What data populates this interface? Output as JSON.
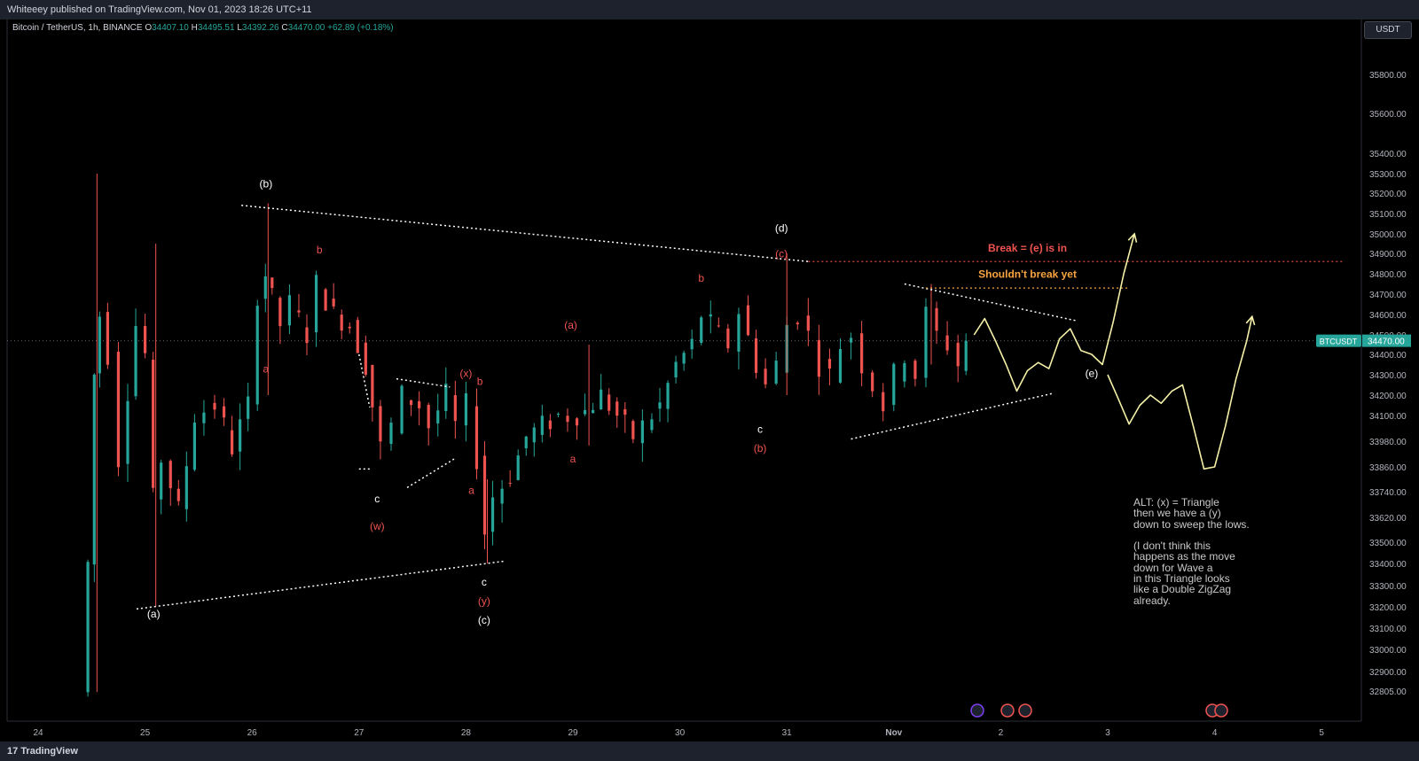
{
  "header": {
    "published": "Whiteeey published on TradingView.com, Nov 01, 2023 18:26 UTC+11"
  },
  "legend": {
    "symbol": "Bitcoin / TetherUS, 1h, BINANCE",
    "o_label": "O",
    "o": "34407.10",
    "h_label": "H",
    "h": "34495.51",
    "l_label": "L",
    "l": "34392.26",
    "c_label": "C",
    "c": "34470.00",
    "change": "+62.89 (+0.18%)"
  },
  "currency_button": "USDT",
  "footer": {
    "brand": "TradingView"
  },
  "colors": {
    "up": "#26a69a",
    "down": "#ef5350",
    "white_label": "#ffffff",
    "red_label": "#ef5350",
    "break_line": "#ef5350",
    "orange_line": "#f7a440",
    "projection": "#f5f0a8"
  },
  "chart_data": {
    "type": "candlestick",
    "symbol": "BTCUSDT",
    "last_price": 34470.0,
    "last_price_label": "34470.00",
    "symbol_badge": "BTCUSDT",
    "x_ticks": [
      {
        "label": "24",
        "day": 24
      },
      {
        "label": "25",
        "day": 25
      },
      {
        "label": "26",
        "day": 26
      },
      {
        "label": "27",
        "day": 27
      },
      {
        "label": "28",
        "day": 28
      },
      {
        "label": "29",
        "day": 29
      },
      {
        "label": "30",
        "day": 30
      },
      {
        "label": "31",
        "day": 31
      },
      {
        "label": "Nov",
        "day": 32
      },
      {
        "label": "2",
        "day": 33
      },
      {
        "label": "3",
        "day": 34
      },
      {
        "label": "4",
        "day": 35
      },
      {
        "label": "5",
        "day": 36
      }
    ],
    "y_ticks": [
      "35800.00",
      "35600.00",
      "35400.00",
      "35300.00",
      "35200.00",
      "35100.00",
      "35000.00",
      "34900.00",
      "34800.00",
      "34700.00",
      "34600.00",
      "34500.00",
      "34400.00",
      "34300.00",
      "34200.00",
      "34100.00",
      "33980.00",
      "33860.00",
      "33740.00",
      "33620.00",
      "33500.00",
      "33400.00",
      "33300.00",
      "33200.00",
      "33100.00",
      "33000.00",
      "32900.00",
      "32805.00"
    ],
    "price_path": [
      [
        24.43,
        32800
      ],
      [
        24.5,
        33400
      ],
      [
        24.55,
        34300
      ],
      [
        24.6,
        34600
      ],
      [
        24.7,
        34400
      ],
      [
        24.8,
        33900
      ],
      [
        24.95,
        34550
      ],
      [
        25.05,
        34400
      ],
      [
        25.1,
        33700
      ],
      [
        25.2,
        33900
      ],
      [
        25.35,
        33650
      ],
      [
        25.5,
        34100
      ],
      [
        25.7,
        34150
      ],
      [
        25.85,
        33950
      ],
      [
        26.0,
        34150
      ],
      [
        26.1,
        34700
      ],
      [
        26.15,
        34800
      ],
      [
        26.3,
        34550
      ],
      [
        26.4,
        34650
      ],
      [
        26.55,
        34500
      ],
      [
        26.65,
        34750
      ],
      [
        26.8,
        34600
      ],
      [
        26.95,
        34550
      ],
      [
        27.1,
        34350
      ],
      [
        27.15,
        34150
      ],
      [
        27.25,
        33950
      ],
      [
        27.35,
        34050
      ],
      [
        27.45,
        34200
      ],
      [
        27.6,
        34150
      ],
      [
        27.7,
        34050
      ],
      [
        27.85,
        34200
      ],
      [
        27.95,
        34050
      ],
      [
        28.05,
        34150
      ],
      [
        28.15,
        33900
      ],
      [
        28.2,
        33550
      ],
      [
        28.3,
        33720
      ],
      [
        28.45,
        33820
      ],
      [
        28.6,
        34000
      ],
      [
        28.75,
        34050
      ],
      [
        28.9,
        34100
      ],
      [
        29.0,
        34100
      ],
      [
        29.15,
        34120
      ],
      [
        29.3,
        34200
      ],
      [
        29.45,
        34100
      ],
      [
        29.6,
        34000
      ],
      [
        29.7,
        34050
      ],
      [
        29.85,
        34150
      ],
      [
        30.0,
        34350
      ],
      [
        30.15,
        34450
      ],
      [
        30.25,
        34600
      ],
      [
        30.4,
        34500
      ],
      [
        30.5,
        34450
      ],
      [
        30.6,
        34620
      ],
      [
        30.75,
        34350
      ],
      [
        30.85,
        34250
      ],
      [
        30.95,
        34350
      ],
      [
        31.05,
        34550
      ],
      [
        31.15,
        34600
      ],
      [
        31.25,
        34500
      ],
      [
        31.35,
        34350
      ],
      [
        31.45,
        34300
      ],
      [
        31.55,
        34450
      ],
      [
        31.65,
        34500
      ],
      [
        31.75,
        34350
      ],
      [
        31.85,
        34250
      ],
      [
        31.95,
        34150
      ],
      [
        32.05,
        34300
      ],
      [
        32.15,
        34400
      ],
      [
        32.25,
        34300
      ],
      [
        32.35,
        34600
      ],
      [
        32.45,
        34500
      ],
      [
        32.55,
        34450
      ],
      [
        32.65,
        34350
      ],
      [
        32.7,
        34470
      ]
    ],
    "price_outliers": [
      {
        "day": 24.55,
        "high": 35300,
        "low": 32800
      },
      {
        "day": 25.1,
        "high": 34950,
        "low": 33200
      },
      {
        "day": 26.15,
        "high": 35150,
        "low": 34200
      },
      {
        "day": 28.2,
        "high": 33800,
        "low": 33400
      },
      {
        "day": 29.15,
        "high": 34450,
        "low": 33960
      },
      {
        "day": 31.0,
        "high": 34900,
        "low": 34200
      },
      {
        "day": 32.35,
        "high": 34750,
        "low": 34350
      }
    ],
    "trendlines": [
      {
        "name": "upper-triangle-line",
        "from": [
          25.9,
          35140
        ],
        "to": [
          31.2,
          34860
        ]
      },
      {
        "name": "lower-triangle-line",
        "from": [
          24.92,
          33190
        ],
        "to": [
          28.35,
          33410
        ]
      },
      {
        "name": "inner-upper-line",
        "from": [
          32.1,
          34750
        ],
        "to": [
          33.7,
          34570
        ]
      },
      {
        "name": "inner-lower-line",
        "from": [
          31.6,
          33990
        ],
        "to": [
          33.5,
          34210
        ]
      },
      {
        "name": "small-triangle-top",
        "from": [
          27.35,
          34280
        ],
        "to": [
          27.85,
          34240
        ]
      },
      {
        "name": "small-triangle-bottom",
        "from": [
          27.45,
          33760
        ],
        "to": [
          27.9,
          33900
        ]
      },
      {
        "name": "small-wedge-left",
        "from": [
          27.0,
          34400
        ],
        "to": [
          27.1,
          34140
        ]
      },
      {
        "name": "small-wedge-vert",
        "from": [
          27.0,
          33850
        ],
        "to": [
          27.1,
          33850
        ]
      }
    ],
    "horizontal_lines": [
      {
        "name": "break-line",
        "label": "Break = (e) is in",
        "price": 34860,
        "from_day": 31.2,
        "to_day": 36.2
      },
      {
        "name": "shouldnt-break-line",
        "label": "Shouldn't break yet",
        "price": 34730,
        "from_day": 32.3,
        "to_day": 34.2
      }
    ],
    "projection_main": [
      [
        32.75,
        34500
      ],
      [
        32.85,
        34580
      ],
      [
        32.95,
        34470
      ],
      [
        33.05,
        34350
      ],
      [
        33.15,
        34220
      ],
      [
        33.25,
        34320
      ],
      [
        33.35,
        34360
      ],
      [
        33.45,
        34330
      ],
      [
        33.55,
        34480
      ],
      [
        33.65,
        34530
      ],
      [
        33.75,
        34420
      ],
      [
        33.85,
        34400
      ],
      [
        33.95,
        34350
      ],
      [
        34.05,
        34560
      ],
      [
        34.15,
        34800
      ],
      [
        34.25,
        35000
      ]
    ],
    "projection_alt": [
      [
        34.0,
        34300
      ],
      [
        34.1,
        34180
      ],
      [
        34.2,
        34060
      ],
      [
        34.3,
        34150
      ],
      [
        34.4,
        34200
      ],
      [
        34.5,
        34160
      ],
      [
        34.6,
        34220
      ],
      [
        34.7,
        34250
      ],
      [
        34.8,
        34050
      ],
      [
        34.9,
        33850
      ],
      [
        35.0,
        33860
      ],
      [
        35.1,
        34050
      ],
      [
        35.2,
        34280
      ],
      [
        35.3,
        34470
      ],
      [
        35.35,
        34590
      ]
    ],
    "wave_labels": [
      {
        "text": "(b)",
        "day": 26.13,
        "price": 35230,
        "color": "white"
      },
      {
        "text": "(a)",
        "day": 25.08,
        "price": 33150,
        "color": "white"
      },
      {
        "text": "(c)",
        "day": 28.17,
        "price": 33120,
        "color": "white"
      },
      {
        "text": "(d)",
        "day": 30.95,
        "price": 35010,
        "color": "white"
      },
      {
        "text": "(e)",
        "day": 33.85,
        "price": 34290,
        "color": "white"
      },
      {
        "text": "b",
        "day": 26.63,
        "price": 34900,
        "color": "red"
      },
      {
        "text": "a",
        "day": 26.13,
        "price": 34310,
        "color": "red"
      },
      {
        "text": "c",
        "day": 27.17,
        "price": 33690,
        "color": "white"
      },
      {
        "text": "(w)",
        "day": 27.17,
        "price": 33560,
        "color": "red"
      },
      {
        "text": "(x)",
        "day": 28.0,
        "price": 34290,
        "color": "red"
      },
      {
        "text": "b",
        "day": 28.13,
        "price": 34250,
        "color": "red"
      },
      {
        "text": "a",
        "day": 28.05,
        "price": 33730,
        "color": "red"
      },
      {
        "text": "c",
        "day": 28.17,
        "price": 33300,
        "color": "white"
      },
      {
        "text": "(y)",
        "day": 28.17,
        "price": 33210,
        "color": "red"
      },
      {
        "text": "(a)",
        "day": 28.98,
        "price": 34530,
        "color": "red"
      },
      {
        "text": "a",
        "day": 29.0,
        "price": 33880,
        "color": "red"
      },
      {
        "text": "b",
        "day": 30.2,
        "price": 34760,
        "color": "red"
      },
      {
        "text": "(c)",
        "day": 30.95,
        "price": 34880,
        "color": "red"
      },
      {
        "text": "c",
        "day": 30.75,
        "price": 34020,
        "color": "white"
      },
      {
        "text": "(b)",
        "day": 30.75,
        "price": 33930,
        "color": "red"
      }
    ],
    "annotations": [
      {
        "name": "break-label",
        "text": "Break = (e) is in",
        "day": 33.25,
        "price": 34910,
        "color": "red"
      },
      {
        "name": "shouldnt-break-label",
        "text": "Shouldn't break yet",
        "day": 33.25,
        "price": 34780,
        "color": "orange"
      }
    ],
    "note": "ALT: (x) = Triangle\nthen we have a (y)\ndown to sweep the lows.\n\n(I don't think this\nhappens as the move\ndown for Wave a\nin this Triangle looks\nlike a Double ZigZag\nalready."
  }
}
